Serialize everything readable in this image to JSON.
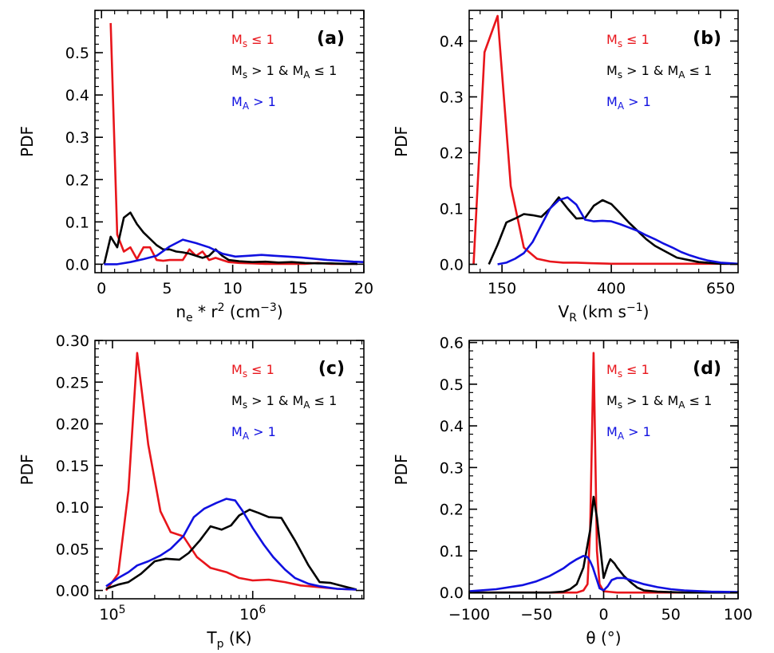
{
  "legend": {
    "red": {
      "base": "M",
      "sub": "s",
      "rel": "≤ 1",
      "color": "#e8151b"
    },
    "black": {
      "base1": "M",
      "sub1": "s",
      "mid": "> 1 & M",
      "sub2": "A",
      "rel": "≤ 1",
      "color": "#000000"
    },
    "blue": {
      "base": "M",
      "sub": "A",
      "rel": "> 1",
      "color": "#1010e0"
    }
  },
  "chart_data": [
    {
      "panel": "(a)",
      "type": "line",
      "ylabel": "PDF",
      "xlabel": {
        "text": "n",
        "sub": "e",
        "mid": " * r",
        "sup": "2",
        "unit": " (cm",
        "unit_sup": "−3",
        "close": ")"
      },
      "xlim": [
        -0.5,
        20
      ],
      "ylim": [
        -0.02,
        0.6
      ],
      "xticks": [
        0,
        5,
        10,
        15,
        20
      ],
      "xtick_labels": [
        "0",
        "5",
        "10",
        "15",
        "20"
      ],
      "yticks": [
        0.0,
        0.1,
        0.2,
        0.3,
        0.4,
        0.5
      ],
      "ytick_labels": [
        "0.0",
        "0.1",
        "0.2",
        "0.3",
        "0.4",
        "0.5"
      ],
      "series": [
        {
          "legend": "red",
          "x": [
            0.7,
            1.2,
            1.7,
            2.2,
            2.7,
            3.2,
            3.7,
            4.2,
            4.7,
            5.2,
            5.7,
            6.2,
            6.7,
            7.2,
            7.7,
            8.2,
            8.7,
            9.2,
            9.7,
            10.5,
            11.5,
            12.5,
            13.5,
            14.5,
            15.5,
            16.5,
            17.5,
            18.5,
            19.5
          ],
          "y": [
            0.57,
            0.07,
            0.03,
            0.04,
            0.012,
            0.04,
            0.04,
            0.01,
            0.008,
            0.01,
            0.01,
            0.01,
            0.035,
            0.02,
            0.03,
            0.01,
            0.015,
            0.01,
            0.005,
            0.003,
            0.002,
            0.001,
            0.001,
            0.001,
            0.001,
            0.003,
            0.001,
            0.001,
            0.001
          ]
        },
        {
          "legend": "black",
          "x": [
            0.2,
            0.7,
            1.2,
            1.7,
            2.2,
            2.7,
            3.2,
            3.7,
            4.2,
            4.7,
            5.2,
            5.7,
            6.2,
            6.7,
            7.2,
            7.7,
            8.2,
            8.7,
            9.2,
            9.7,
            10.5,
            11.5,
            12.5,
            13.5,
            14.5,
            15.5,
            16.5,
            17.5,
            18.5,
            19.5
          ],
          "y": [
            0.0,
            0.065,
            0.04,
            0.11,
            0.122,
            0.095,
            0.075,
            0.06,
            0.045,
            0.035,
            0.035,
            0.03,
            0.028,
            0.025,
            0.02,
            0.015,
            0.02,
            0.035,
            0.02,
            0.01,
            0.007,
            0.005,
            0.006,
            0.004,
            0.005,
            0.003,
            0.002,
            0.002,
            0.001,
            0.001
          ]
        },
        {
          "legend": "blue",
          "x": [
            0.2,
            1.2,
            2.2,
            3.2,
            4.2,
            5.2,
            6.2,
            7.2,
            8.2,
            9.2,
            10.2,
            11.2,
            12.2,
            13.2,
            14.2,
            15.2,
            16.2,
            17.2,
            18.2,
            19.2,
            20
          ],
          "y": [
            0.0,
            0.0,
            0.005,
            0.012,
            0.02,
            0.042,
            0.058,
            0.05,
            0.04,
            0.025,
            0.018,
            0.02,
            0.022,
            0.02,
            0.018,
            0.016,
            0.013,
            0.01,
            0.008,
            0.006,
            0.005
          ]
        }
      ]
    },
    {
      "panel": "(b)",
      "type": "line",
      "ylabel": "PDF",
      "xlabel": {
        "text": "V",
        "sub": "R",
        "unit": " (km s",
        "unit_sup": "−1",
        "close": ")"
      },
      "xlim": [
        75,
        690
      ],
      "ylim": [
        -0.015,
        0.455
      ],
      "xticks": [
        150,
        400,
        650
      ],
      "xtick_labels": [
        "150",
        "400",
        "650"
      ],
      "yticks": [
        0.0,
        0.1,
        0.2,
        0.3,
        0.4
      ],
      "ytick_labels": [
        "0.0",
        "0.1",
        "0.2",
        "0.3",
        "0.4"
      ],
      "series": [
        {
          "legend": "red",
          "x": [
            85,
            110,
            140,
            170,
            200,
            230,
            260,
            290,
            320,
            350,
            400,
            450,
            500,
            550,
            600,
            650,
            690
          ],
          "y": [
            0.0,
            0.38,
            0.445,
            0.14,
            0.03,
            0.01,
            0.005,
            0.003,
            0.003,
            0.002,
            0.001,
            0.001,
            0.001,
            0.001,
            0.001,
            0.001,
            0.001
          ]
        },
        {
          "legend": "black",
          "x": [
            120,
            140,
            160,
            180,
            200,
            220,
            240,
            260,
            280,
            300,
            320,
            340,
            360,
            380,
            400,
            420,
            440,
            460,
            480,
            500,
            550,
            600,
            650,
            690
          ],
          "y": [
            0.0,
            0.035,
            0.075,
            0.082,
            0.09,
            0.088,
            0.085,
            0.1,
            0.12,
            0.1,
            0.082,
            0.083,
            0.105,
            0.115,
            0.108,
            0.092,
            0.075,
            0.06,
            0.045,
            0.033,
            0.012,
            0.004,
            0.001,
            0.001
          ]
        },
        {
          "legend": "blue",
          "x": [
            140,
            160,
            180,
            200,
            220,
            240,
            260,
            280,
            300,
            320,
            340,
            360,
            380,
            400,
            420,
            440,
            460,
            480,
            500,
            520,
            540,
            560,
            580,
            600,
            620,
            650,
            690
          ],
          "y": [
            0.0,
            0.003,
            0.01,
            0.02,
            0.04,
            0.07,
            0.1,
            0.115,
            0.12,
            0.107,
            0.08,
            0.077,
            0.078,
            0.077,
            0.072,
            0.066,
            0.06,
            0.052,
            0.045,
            0.037,
            0.03,
            0.022,
            0.016,
            0.011,
            0.007,
            0.003,
            0.001
          ]
        }
      ]
    },
    {
      "panel": "(c)",
      "type": "line",
      "xscale": "log",
      "ylabel": "PDF",
      "xlabel": {
        "text": "T",
        "sub": "p",
        "unit": " (K)"
      },
      "xlim": [
        75000,
        6200000
      ],
      "ylim": [
        -0.01,
        0.3
      ],
      "xticks": [
        100000,
        1000000
      ],
      "xtick_labels": [
        "10",
        "10"
      ],
      "xtick_sups": [
        "5",
        "6"
      ],
      "yticks": [
        0.0,
        0.05,
        0.1,
        0.15,
        0.2,
        0.25,
        0.3
      ],
      "ytick_labels": [
        "0.00",
        "0.05",
        "0.10",
        "0.15",
        "0.20",
        "0.25",
        "0.30"
      ],
      "series": [
        {
          "legend": "red",
          "x": [
            90000,
            110000,
            130000,
            150000,
            180000,
            220000,
            260000,
            320000,
            400000,
            500000,
            650000,
            800000,
            1000000,
            1300000,
            1700000,
            2200000,
            3000000,
            4000000,
            5500000
          ],
          "y": [
            0.0,
            0.02,
            0.12,
            0.285,
            0.175,
            0.095,
            0.07,
            0.065,
            0.04,
            0.027,
            0.022,
            0.015,
            0.012,
            0.013,
            0.01,
            0.006,
            0.004,
            0.002,
            0.001
          ]
        },
        {
          "legend": "black",
          "x": [
            90000,
            110000,
            130000,
            160000,
            200000,
            240000,
            300000,
            350000,
            420000,
            500000,
            600000,
            700000,
            800000,
            950000,
            1100000,
            1300000,
            1600000,
            2000000,
            2500000,
            3000000,
            3600000,
            4200000,
            5500000
          ],
          "y": [
            0.002,
            0.007,
            0.01,
            0.02,
            0.035,
            0.038,
            0.037,
            0.045,
            0.06,
            0.077,
            0.073,
            0.078,
            0.09,
            0.097,
            0.093,
            0.088,
            0.087,
            0.06,
            0.03,
            0.01,
            0.009,
            0.006,
            0.001
          ]
        },
        {
          "legend": "blue",
          "x": [
            90000,
            110000,
            130000,
            150000,
            180000,
            220000,
            260000,
            320000,
            380000,
            450000,
            550000,
            650000,
            750000,
            850000,
            1000000,
            1200000,
            1400000,
            1700000,
            2000000,
            2500000,
            3000000,
            4000000,
            5500000
          ],
          "y": [
            0.005,
            0.015,
            0.022,
            0.03,
            0.035,
            0.042,
            0.05,
            0.065,
            0.088,
            0.098,
            0.105,
            0.11,
            0.108,
            0.095,
            0.075,
            0.055,
            0.04,
            0.025,
            0.015,
            0.008,
            0.005,
            0.002,
            0.001
          ]
        }
      ]
    },
    {
      "panel": "(d)",
      "type": "line",
      "ylabel": "PDF",
      "xlabel": {
        "text": "θ (°)"
      },
      "xlim": [
        -100,
        100
      ],
      "ylim": [
        -0.015,
        0.605
      ],
      "xticks": [
        -100,
        -50,
        0,
        50,
        100
      ],
      "xtick_labels": [
        "−100",
        "−50",
        "0",
        "50",
        "100"
      ],
      "yticks": [
        0.0,
        0.1,
        0.2,
        0.3,
        0.4,
        0.5,
        0.6
      ],
      "ytick_labels": [
        "0.0",
        "0.1",
        "0.2",
        "0.3",
        "0.4",
        "0.5",
        "0.6"
      ],
      "series": [
        {
          "legend": "red",
          "x": [
            -100,
            -30,
            -20,
            -15,
            -12,
            -10,
            -7.5,
            -5,
            -3,
            0,
            10,
            50,
            100
          ],
          "y": [
            0.0,
            0.0,
            0.0,
            0.005,
            0.02,
            0.15,
            0.575,
            0.1,
            0.02,
            0.003,
            0.0,
            0.0,
            0.0
          ]
        },
        {
          "legend": "black",
          "x": [
            -100,
            -40,
            -30,
            -25,
            -20,
            -15,
            -10,
            -7.5,
            -5,
            0,
            3,
            5,
            8,
            10,
            15,
            20,
            25,
            30,
            40,
            60,
            100
          ],
          "y": [
            0.0,
            0.0,
            0.002,
            0.008,
            0.02,
            0.06,
            0.15,
            0.23,
            0.18,
            0.035,
            0.065,
            0.08,
            0.07,
            0.06,
            0.04,
            0.025,
            0.012,
            0.005,
            0.002,
            0.0,
            0.0
          ]
        },
        {
          "legend": "blue",
          "x": [
            -100,
            -80,
            -60,
            -50,
            -40,
            -30,
            -25,
            -20,
            -15,
            -12,
            -10,
            -8,
            -5,
            -3,
            0,
            3,
            6,
            10,
            15,
            20,
            30,
            40,
            50,
            60,
            80,
            100
          ],
          "y": [
            0.003,
            0.008,
            0.018,
            0.027,
            0.04,
            0.058,
            0.07,
            0.08,
            0.088,
            0.085,
            0.075,
            0.06,
            0.03,
            0.01,
            0.005,
            0.015,
            0.03,
            0.035,
            0.035,
            0.03,
            0.02,
            0.013,
            0.008,
            0.005,
            0.002,
            0.001
          ]
        }
      ]
    }
  ]
}
